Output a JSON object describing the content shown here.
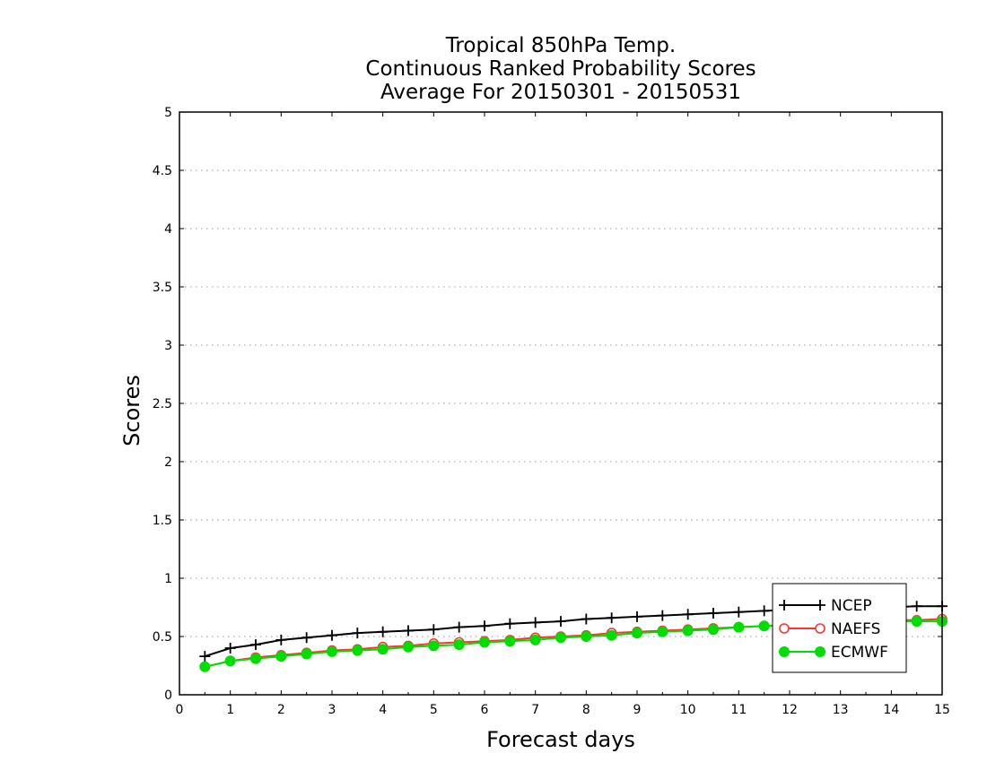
{
  "chart_data": {
    "type": "line",
    "title_lines": [
      "Tropical 850hPa Temp.",
      "Continuous Ranked Probability Scores",
      "Average For 20150301 - 20150531"
    ],
    "xlabel": "Forecast days",
    "ylabel": "Scores",
    "xlim": [
      0,
      15
    ],
    "ylim": [
      0,
      5
    ],
    "x_ticks": [
      "0",
      "1",
      "2",
      "3",
      "4",
      "5",
      "6",
      "7",
      "8",
      "9",
      "10",
      "11",
      "12",
      "13",
      "14",
      "15"
    ],
    "y_ticks": [
      "0",
      "0.5",
      "1",
      "1.5",
      "2",
      "2.5",
      "3",
      "3.5",
      "4",
      "4.5",
      "5"
    ],
    "grid": "horizontal dotted",
    "legend_position": "bottom-right",
    "x": [
      0.5,
      1,
      1.5,
      2,
      2.5,
      3,
      3.5,
      4,
      4.5,
      5,
      5.5,
      6,
      6.5,
      7,
      7.5,
      8,
      8.5,
      9,
      9.5,
      10,
      10.5,
      11,
      11.5,
      12,
      12.5,
      13,
      13.5,
      14,
      14.5,
      15
    ],
    "series": [
      {
        "name": "NCEP",
        "color": "#000000",
        "marker": "plus",
        "values": [
          0.33,
          0.4,
          0.43,
          0.47,
          0.49,
          0.51,
          0.53,
          0.54,
          0.55,
          0.56,
          0.58,
          0.59,
          0.61,
          0.62,
          0.63,
          0.65,
          0.66,
          0.67,
          0.68,
          0.69,
          0.7,
          0.71,
          0.72,
          0.73,
          0.73,
          0.74,
          0.75,
          0.75,
          0.76,
          0.76
        ]
      },
      {
        "name": "NAEFS",
        "color": "#ff3333",
        "marker": "open-circle",
        "values": [
          0.24,
          0.29,
          0.32,
          0.34,
          0.36,
          0.38,
          0.39,
          0.41,
          0.42,
          0.44,
          0.45,
          0.46,
          0.47,
          0.49,
          0.5,
          0.51,
          0.53,
          0.54,
          0.55,
          0.56,
          0.57,
          0.58,
          0.59,
          0.6,
          0.61,
          0.62,
          0.63,
          0.64,
          0.64,
          0.65
        ]
      },
      {
        "name": "ECMWF",
        "color": "#00dd00",
        "marker": "filled-circle",
        "values": [
          0.24,
          0.29,
          0.31,
          0.33,
          0.35,
          0.37,
          0.38,
          0.39,
          0.41,
          0.42,
          0.43,
          0.45,
          0.46,
          0.47,
          0.49,
          0.5,
          0.51,
          0.53,
          0.54,
          0.55,
          0.56,
          0.58,
          0.59,
          0.6,
          0.61,
          0.62,
          0.62,
          0.63,
          0.63,
          0.63
        ]
      }
    ]
  }
}
